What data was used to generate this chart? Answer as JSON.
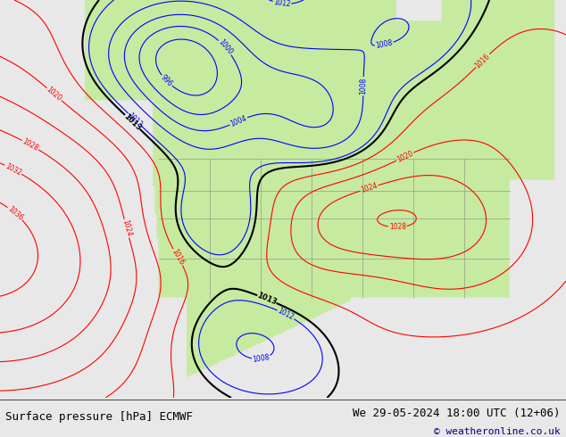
{
  "title_left": "Surface pressure [hPa] ECMWF",
  "title_right": "We 29-05-2024 18:00 UTC (12+06)",
  "copyright": "© weatheronline.co.uk",
  "bg_color": "#e8e8e8",
  "land_color_rgba": [
    0.78,
    0.92,
    0.63,
    1.0
  ],
  "ocean_color_rgba": [
    0.91,
    0.91,
    0.91,
    1.0
  ],
  "contour_color_below": "#0000ff",
  "contour_color_above": "#ff0000",
  "contour_color_1013": "#000000",
  "title_fontsize": 9,
  "label_fontsize": 5.5,
  "figsize": [
    6.34,
    4.9
  ],
  "dpi": 100
}
